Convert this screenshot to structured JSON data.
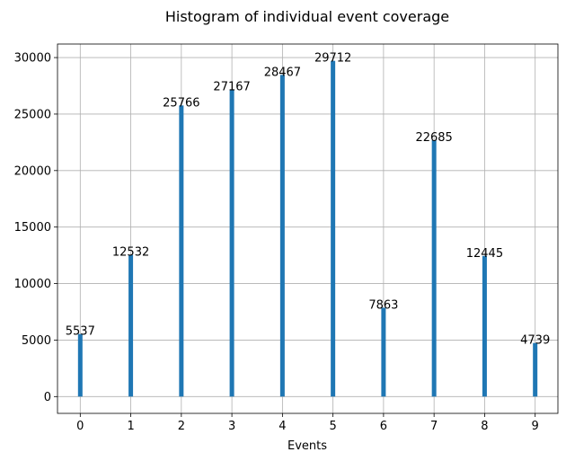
{
  "chart_data": {
    "type": "bar",
    "title": "Histogram of individual event coverage",
    "xlabel": "Events",
    "ylabel": "",
    "categories": [
      "0",
      "1",
      "2",
      "3",
      "4",
      "5",
      "6",
      "7",
      "8",
      "9"
    ],
    "values": [
      5537,
      12532,
      25766,
      27167,
      28467,
      29712,
      7863,
      22685,
      12445,
      4739
    ],
    "data_labels": [
      "5537",
      "12532",
      "25766",
      "27167",
      "28467",
      "29712",
      "7863",
      "22685",
      "12445",
      "4739"
    ],
    "xlim": [
      -0.45,
      9.45
    ],
    "ylim": [
      -1486,
      31198
    ],
    "yticks": [
      0,
      5000,
      10000,
      15000,
      20000,
      25000,
      30000
    ],
    "ytick_labels": [
      "0",
      "5000",
      "10000",
      "15000",
      "20000",
      "25000",
      "30000"
    ],
    "grid": true,
    "bar_color": "#1f77b4"
  }
}
